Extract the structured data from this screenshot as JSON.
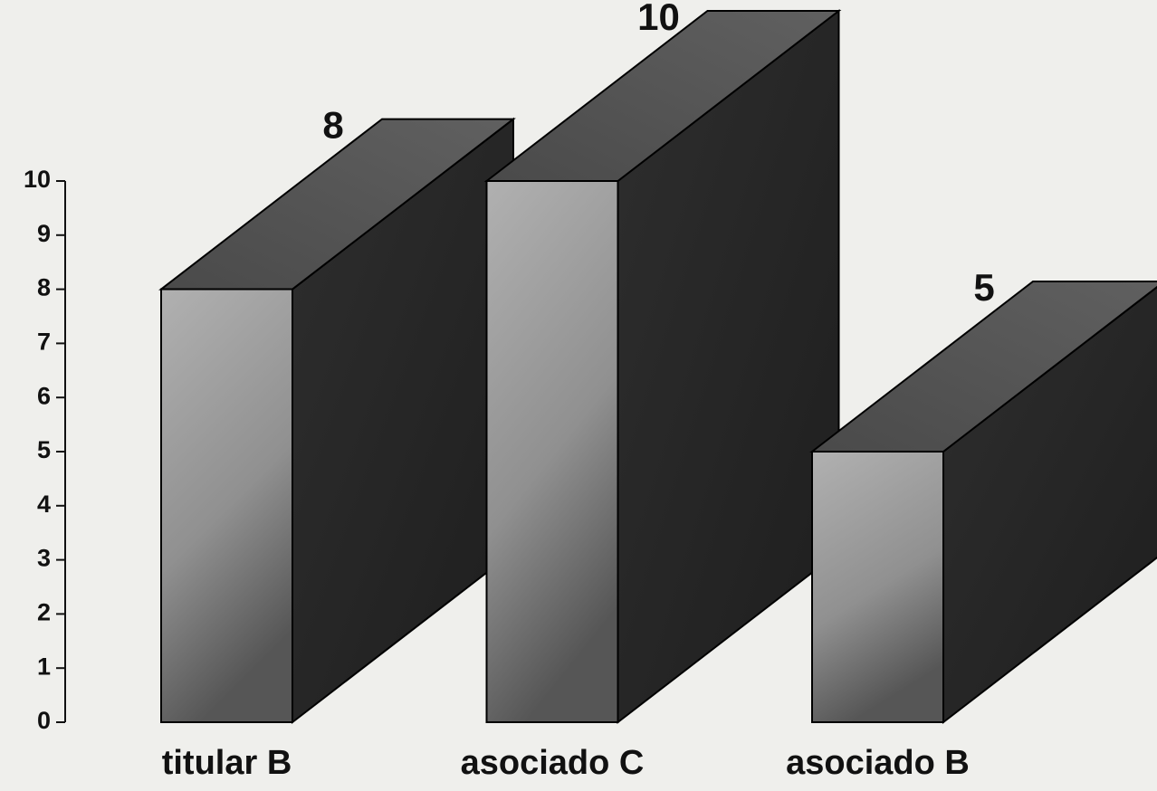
{
  "chart_data": {
    "type": "bar",
    "categories": [
      "titular B",
      "asociado C",
      "asociado B"
    ],
    "values": [
      8,
      10,
      5
    ],
    "color": "#9c9c9c",
    "ylim": [
      0,
      10
    ],
    "yticks": [
      0,
      1,
      2,
      3,
      4,
      5,
      6,
      7,
      8,
      9,
      10
    ]
  }
}
